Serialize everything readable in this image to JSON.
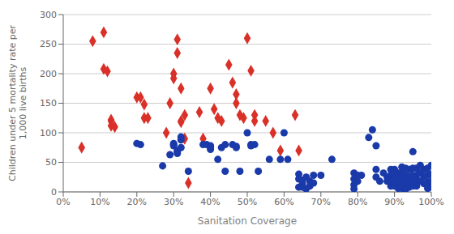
{
  "chart_data": {
    "type": "scatter",
    "xlabel": "Sanitation Coverage",
    "ylabel": "Children under 5 mortality rate per\n1,000 live births",
    "xlim": [
      0,
      1.0
    ],
    "ylim": [
      0,
      300
    ],
    "xticks": [
      {
        "value": 0,
        "label": "0%"
      },
      {
        "value": 0.1,
        "label": "10%"
      },
      {
        "value": 0.2,
        "label": "20%"
      },
      {
        "value": 0.3,
        "label": "30%"
      },
      {
        "value": 0.4,
        "label": "40%"
      },
      {
        "value": 0.5,
        "label": "50%"
      },
      {
        "value": 0.6,
        "label": "60%"
      },
      {
        "value": 0.7,
        "label": "70%"
      },
      {
        "value": 0.8,
        "label": "80%"
      },
      {
        "value": 0.9,
        "label": "90%"
      },
      {
        "value": 1.0,
        "label": "100%"
      }
    ],
    "yticks": [
      0,
      50,
      100,
      150,
      200,
      250,
      300
    ],
    "grid": "y",
    "series": [
      {
        "color": "#d93028",
        "marker": "diamond",
        "x": [
          0.05,
          0.08,
          0.11,
          0.11,
          0.12,
          0.13,
          0.13,
          0.13,
          0.14,
          0.2,
          0.21,
          0.22,
          0.22,
          0.23,
          0.28,
          0.29,
          0.3,
          0.3,
          0.31,
          0.31,
          0.32,
          0.32,
          0.32,
          0.33,
          0.33,
          0.34,
          0.37,
          0.38,
          0.4,
          0.41,
          0.42,
          0.43,
          0.45,
          0.46,
          0.47,
          0.47,
          0.48,
          0.49,
          0.5,
          0.51,
          0.52,
          0.52,
          0.55,
          0.57,
          0.59,
          0.63,
          0.64,
          0.93
        ],
        "values": [
          75,
          255,
          270,
          208,
          204,
          122,
          120,
          112,
          110,
          160,
          160,
          148,
          125,
          125,
          100,
          150,
          200,
          192,
          258,
          235,
          175,
          120,
          118,
          130,
          90,
          15,
          135,
          90,
          175,
          140,
          125,
          120,
          215,
          185,
          165,
          150,
          130,
          125,
          260,
          205,
          130,
          120,
          120,
          100,
          70,
          130,
          70,
          10
        ]
      },
      {
        "color": "#1a3aaa",
        "marker": "circle",
        "x": [
          0.2,
          0.21,
          0.27,
          0.29,
          0.3,
          0.3,
          0.3,
          0.31,
          0.31,
          0.31,
          0.32,
          0.32,
          0.32,
          0.34,
          0.38,
          0.39,
          0.4,
          0.4,
          0.4,
          0.42,
          0.43,
          0.44,
          0.44,
          0.46,
          0.47,
          0.47,
          0.48,
          0.5,
          0.51,
          0.51,
          0.52,
          0.53,
          0.56,
          0.59,
          0.6,
          0.61,
          0.64,
          0.64,
          0.64,
          0.65,
          0.65,
          0.65,
          0.66,
          0.66,
          0.67,
          0.67,
          0.68,
          0.68,
          0.7,
          0.73,
          0.79,
          0.79,
          0.79,
          0.79,
          0.8,
          0.8,
          0.81,
          0.83,
          0.84,
          0.85,
          0.85,
          0.85,
          0.86,
          0.87,
          0.88,
          0.88,
          0.89,
          0.89,
          0.89,
          0.89,
          0.9,
          0.9,
          0.9,
          0.9,
          0.91,
          0.91,
          0.91,
          0.91,
          0.92,
          0.92,
          0.92,
          0.92,
          0.92,
          0.93,
          0.93,
          0.93,
          0.93,
          0.93,
          0.94,
          0.94,
          0.94,
          0.94,
          0.95,
          0.95,
          0.95,
          0.95,
          0.95,
          0.96,
          0.96,
          0.96,
          0.96,
          0.97,
          0.97,
          0.97,
          0.98,
          0.98,
          0.98,
          0.99,
          0.99,
          0.99,
          0.99,
          1.0,
          1.0,
          1.0,
          1.0
        ],
        "values": [
          82,
          80,
          44,
          63,
          82,
          80,
          78,
          70,
          68,
          65,
          93,
          88,
          75,
          35,
          80,
          80,
          78,
          75,
          72,
          55,
          75,
          80,
          35,
          80,
          77,
          75,
          35,
          100,
          80,
          78,
          80,
          35,
          55,
          55,
          100,
          55,
          30,
          22,
          8,
          20,
          14,
          8,
          25,
          5,
          18,
          10,
          28,
          15,
          28,
          55,
          32,
          22,
          12,
          5,
          28,
          18,
          28,
          92,
          105,
          78,
          38,
          25,
          18,
          32,
          25,
          18,
          38,
          28,
          18,
          10,
          38,
          28,
          20,
          10,
          32,
          22,
          14,
          6,
          42,
          32,
          22,
          14,
          6,
          40,
          28,
          20,
          10,
          4,
          38,
          26,
          16,
          8,
          68,
          40,
          28,
          18,
          10,
          40,
          28,
          20,
          10,
          45,
          32,
          18,
          38,
          26,
          14,
          40,
          28,
          16,
          6,
          45,
          30,
          18,
          8
        ]
      }
    ]
  }
}
